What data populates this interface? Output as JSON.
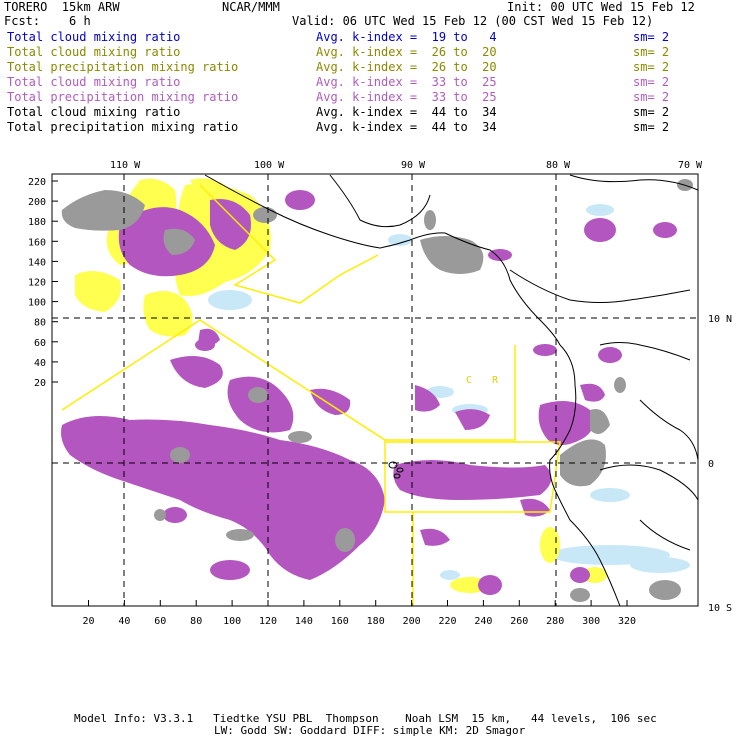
{
  "header": {
    "model": "TORERO  15km ARW",
    "org": "NCAR/MMM",
    "init": "Init: 00 UTC Wed 15 Feb 12",
    "fcst": "Fcst:    6 h",
    "valid": "Valid: 06 UTC Wed 15 Feb 12 (00 CST Wed 15 Feb 12)"
  },
  "colors": {
    "blue": "#0000cc",
    "olive": "#8a8a00",
    "purple": "#b05cc0",
    "yellow": "#ffff40",
    "violet": "#b456c0",
    "grey": "#9a9a9a",
    "lightblue": "#c8e8f8"
  },
  "legend": [
    {
      "field": "Total cloud mixing ratio",
      "kindex": "Avg. k-index =  19 to   4",
      "sm": "sm= 2",
      "color": "#0000cc"
    },
    {
      "field": "Total cloud mixing ratio",
      "kindex": "Avg. k-index =  26 to  20",
      "sm": "sm= 2",
      "color": "#8a8a00"
    },
    {
      "field": "Total precipitation mixing ratio",
      "kindex": "Avg. k-index =  26 to  20",
      "sm": "sm= 2",
      "color": "#8a8a00"
    },
    {
      "field": "Total cloud mixing ratio",
      "kindex": "Avg. k-index =  33 to  25",
      "sm": "sm= 2",
      "color": "#b05cc0"
    },
    {
      "field": "Total precipitation mixing ratio",
      "kindex": "Avg. k-index =  33 to  25",
      "sm": "sm= 2",
      "color": "#b05cc0"
    },
    {
      "field": "Total cloud mixing ratio",
      "kindex": "Avg. k-index =  44 to  34",
      "sm": "sm= 2",
      "color": "#000000"
    },
    {
      "field": "Total precipitation mixing ratio",
      "kindex": "Avg. k-index =  44 to  34",
      "sm": "sm= 2",
      "color": "#000000"
    }
  ],
  "map": {
    "lon_labels": [
      "110 W",
      "100 W",
      "90 W",
      "80 W",
      "70 W"
    ],
    "lat_labels": [
      "10 N",
      "0",
      "10 S"
    ],
    "x_ticks": [
      "20",
      "40",
      "60",
      "80",
      "100",
      "120",
      "140",
      "160",
      "180",
      "200",
      "220",
      "240",
      "260",
      "280",
      "300",
      "320"
    ],
    "y_ticks": [
      "220",
      "200",
      "180",
      "160",
      "140",
      "120",
      "100",
      "80",
      "60",
      "40",
      "20"
    ],
    "annotations": [
      "C",
      "R"
    ]
  },
  "footer": {
    "line1": "Model Info: V3.3.1   Tiedtke YSU PBL  Thompson    Noah LSM  15 km,   44 levels,  106 sec",
    "line2": "LW: Godd SW: Goddard DIFF: simple KM: 2D Smagor"
  }
}
